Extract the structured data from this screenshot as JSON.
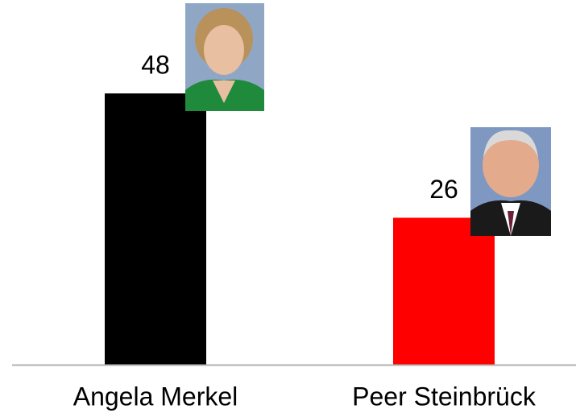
{
  "chart_data": {
    "type": "bar",
    "categories": [
      "Angela Merkel",
      "Peer Steinbrück"
    ],
    "values": [
      48,
      26
    ],
    "colors": [
      "#000000",
      "#ff0000"
    ]
  }
}
